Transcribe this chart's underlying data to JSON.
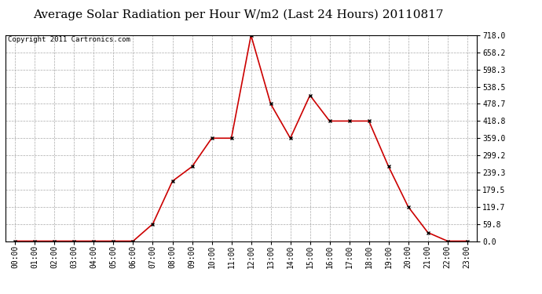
{
  "title": "Average Solar Radiation per Hour W/m2 (Last 24 Hours) 20110817",
  "copyright": "Copyright 2011 Cartronics.com",
  "hours": [
    "00:00",
    "01:00",
    "02:00",
    "03:00",
    "04:00",
    "05:00",
    "06:00",
    "07:00",
    "08:00",
    "09:00",
    "10:00",
    "11:00",
    "12:00",
    "13:00",
    "14:00",
    "15:00",
    "16:00",
    "17:00",
    "18:00",
    "19:00",
    "20:00",
    "21:00",
    "22:00",
    "23:00"
  ],
  "values": [
    0.0,
    0.0,
    0.0,
    0.0,
    0.0,
    0.0,
    0.0,
    59.8,
    209.0,
    260.0,
    359.0,
    359.0,
    718.0,
    478.7,
    359.0,
    508.5,
    418.8,
    418.8,
    418.8,
    260.0,
    119.7,
    29.9,
    0.0,
    0.0
  ],
  "y_ticks": [
    0.0,
    59.8,
    119.7,
    179.5,
    239.3,
    299.2,
    359.0,
    418.8,
    478.7,
    538.5,
    598.3,
    658.2,
    718.0
  ],
  "y_tick_labels": [
    "0.0",
    "59.8",
    "119.7",
    "179.5",
    "239.3",
    "299.2",
    "359.0",
    "418.8",
    "478.7",
    "538.5",
    "598.3",
    "658.2",
    "718.0"
  ],
  "line_color": "#cc0000",
  "marker": "x",
  "background_color": "#ffffff",
  "plot_bg_color": "#ffffff",
  "grid_color": "#aaaaaa",
  "title_fontsize": 11,
  "copyright_fontsize": 6.5,
  "tick_fontsize": 7,
  "ylim": [
    0.0,
    718.0
  ],
  "ylabel_right": true
}
